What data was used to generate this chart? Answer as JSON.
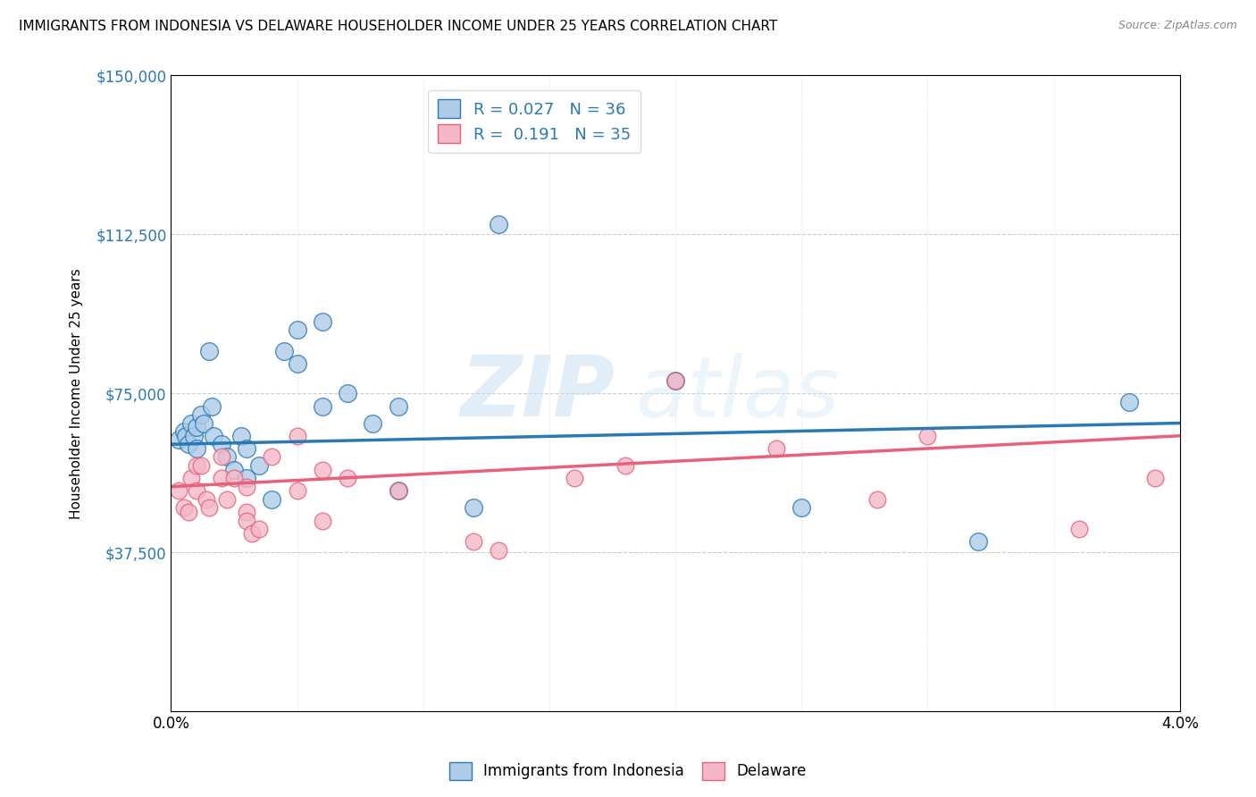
{
  "title": "IMMIGRANTS FROM INDONESIA VS DELAWARE HOUSEHOLDER INCOME UNDER 25 YEARS CORRELATION CHART",
  "source": "Source: ZipAtlas.com",
  "ylabel": "Householder Income Under 25 years",
  "xlim": [
    0,
    0.04
  ],
  "ylim": [
    0,
    150000
  ],
  "yticks": [
    0,
    37500,
    75000,
    112500,
    150000
  ],
  "xticks": [
    0.0,
    0.005,
    0.01,
    0.015,
    0.02,
    0.025,
    0.03,
    0.035,
    0.04
  ],
  "blue_color": "#aecce8",
  "blue_line_color": "#2979b5",
  "pink_color": "#f4b8c8",
  "pink_line_color": "#e8607a",
  "legend_blue_R": "0.027",
  "legend_blue_N": "36",
  "legend_pink_R": "0.191",
  "legend_pink_N": "35",
  "watermark_zip": "ZIP",
  "watermark_atlas": "atlas",
  "blue_scatter_x": [
    0.0003,
    0.0005,
    0.0006,
    0.0007,
    0.0008,
    0.0009,
    0.001,
    0.001,
    0.0012,
    0.0013,
    0.0015,
    0.0016,
    0.0017,
    0.002,
    0.0022,
    0.0025,
    0.0028,
    0.003,
    0.003,
    0.0035,
    0.004,
    0.0045,
    0.005,
    0.005,
    0.006,
    0.006,
    0.007,
    0.008,
    0.009,
    0.009,
    0.012,
    0.013,
    0.02,
    0.025,
    0.032,
    0.038
  ],
  "blue_scatter_y": [
    64000,
    66000,
    65000,
    63000,
    68000,
    65000,
    67000,
    62000,
    70000,
    68000,
    85000,
    72000,
    65000,
    63000,
    60000,
    57000,
    65000,
    62000,
    55000,
    58000,
    50000,
    85000,
    90000,
    82000,
    92000,
    72000,
    75000,
    68000,
    72000,
    52000,
    48000,
    115000,
    78000,
    48000,
    40000,
    73000
  ],
  "pink_scatter_x": [
    0.0003,
    0.0005,
    0.0007,
    0.0008,
    0.001,
    0.001,
    0.0012,
    0.0014,
    0.0015,
    0.002,
    0.002,
    0.0022,
    0.0025,
    0.003,
    0.003,
    0.003,
    0.0032,
    0.0035,
    0.004,
    0.005,
    0.005,
    0.006,
    0.006,
    0.007,
    0.009,
    0.012,
    0.013,
    0.016,
    0.018,
    0.02,
    0.024,
    0.028,
    0.03,
    0.036,
    0.039
  ],
  "pink_scatter_y": [
    52000,
    48000,
    47000,
    55000,
    58000,
    52000,
    58000,
    50000,
    48000,
    60000,
    55000,
    50000,
    55000,
    53000,
    47000,
    45000,
    42000,
    43000,
    60000,
    65000,
    52000,
    57000,
    45000,
    55000,
    52000,
    40000,
    38000,
    55000,
    58000,
    78000,
    62000,
    50000,
    65000,
    43000,
    55000
  ],
  "blue_trend_x": [
    0,
    0.04
  ],
  "blue_trend_y": [
    63000,
    68000
  ],
  "pink_trend_x": [
    0,
    0.04
  ],
  "pink_trend_y": [
    53000,
    65000
  ],
  "dot_size_blue": 200,
  "dot_size_pink": 180,
  "title_fontsize": 11,
  "axis_label_color": "#2979b5",
  "grid_color": "#cccccc"
}
